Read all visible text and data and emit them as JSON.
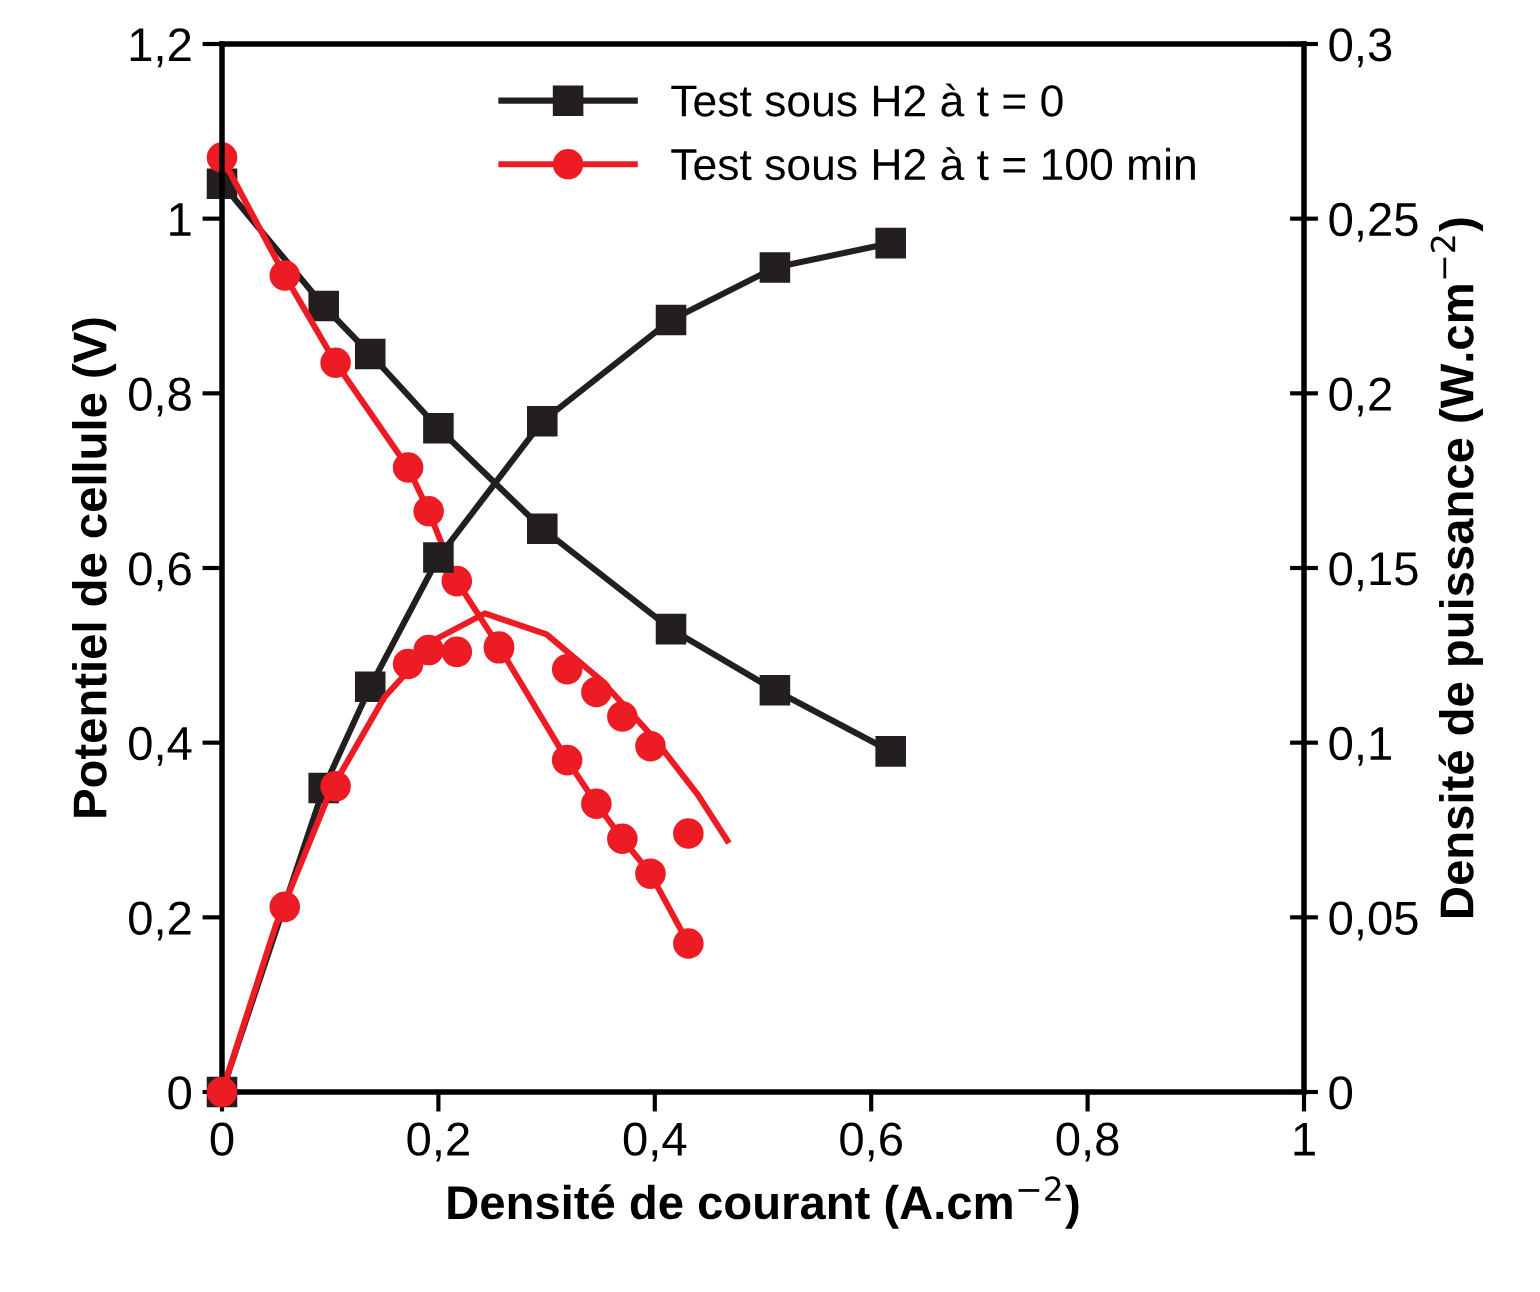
{
  "chart_data": {
    "type": "line",
    "xlabel": "Densité de courant (A.cm$^{−2}$)",
    "ylabel": "Potentiel de cellule (V)",
    "y2label": "Densité de puissance (W.cm$^{−2}$)",
    "xlim": [
      0,
      1
    ],
    "xticks": [
      0,
      {
        "value": 0.2,
        "label": "0,2"
      },
      {
        "value": 0.4,
        "label": "0,4"
      },
      {
        "value": 0.6,
        "label": "0,6"
      },
      {
        "value": 0.8,
        "label": "0,8"
      },
      1
    ],
    "ylim": [
      0,
      1.2
    ],
    "yticks": [
      0,
      {
        "value": 0.2,
        "label": "0,2"
      },
      {
        "value": 0.4,
        "label": "0,4"
      },
      {
        "value": 0.6,
        "label": "0,6"
      },
      {
        "value": 0.8,
        "label": "0,8"
      },
      1,
      {
        "value": 1.2,
        "label": "1,2"
      }
    ],
    "y2lim": [
      0,
      0.3
    ],
    "y2ticks": [
      0,
      {
        "value": 0.05,
        "label": "0,05"
      },
      {
        "value": 0.1,
        "label": "0,1"
      },
      {
        "value": 0.15,
        "label": "0,15"
      },
      {
        "value": 0.2,
        "label": "0,2"
      },
      {
        "value": 0.25,
        "label": "0,25"
      },
      {
        "value": 0.3,
        "label": "0,3"
      }
    ],
    "grid": false,
    "legend": "top",
    "series": [
      {
        "name": "Test sous H2 à t = 0",
        "color": "#231f20",
        "marker": "square",
        "x": [
          0,
          0.094,
          0.137,
          0.2,
          0.296,
          0.415,
          0.511,
          0.618
        ],
        "values": [
          1.04,
          0.9,
          0.845,
          0.76,
          0.645,
          0.53,
          0.46,
          0.39
        ]
      },
      {
        "axis": "y2",
        "color": "#231f20",
        "marker": "square",
        "x": [
          0,
          0.094,
          0.137,
          0.2,
          0.296,
          0.415,
          0.511,
          0.618
        ],
        "values": [
          0,
          0.087,
          0.116,
          0.153,
          0.192,
          0.221,
          0.236,
          0.243
        ]
      },
      {
        "name": "Test sous H2 à t = 100 min",
        "color": "#ed1c24",
        "marker": "circle",
        "x": [
          0,
          0.058,
          0.105,
          0.172,
          0.191,
          0.217,
          0.256,
          0.319,
          0.346,
          0.37,
          0.396,
          0.431
        ],
        "values": [
          1.07,
          0.935,
          0.835,
          0.715,
          0.665,
          0.585,
          0.51,
          0.38,
          0.33,
          0.29,
          0.25,
          0.17
        ]
      },
      {
        "type": "scatter",
        "axis": "y2",
        "color": "#ed1c24",
        "marker": "circle",
        "x": [
          0,
          0.058,
          0.105,
          0.172,
          0.191,
          0.217,
          0.256,
          0.319,
          0.346,
          0.37,
          0.396,
          0.431
        ],
        "values": [
          0,
          0.053,
          0.0875,
          0.1225,
          0.1265,
          0.126,
          0.127,
          0.121,
          0.1145,
          0.1075,
          0.099,
          0.074
        ]
      },
      {
        "axis": "y2",
        "color": "#ed1c24",
        "marker": "none",
        "x": [
          0,
          0.05,
          0.1,
          0.15,
          0.2,
          0.243,
          0.3,
          0.35,
          0.4,
          0.44,
          0.467
        ],
        "values": [
          0,
          0.048,
          0.086,
          0.113,
          0.13,
          0.137,
          0.131,
          0.118,
          0.101,
          0.085,
          0.072
        ]
      }
    ]
  }
}
